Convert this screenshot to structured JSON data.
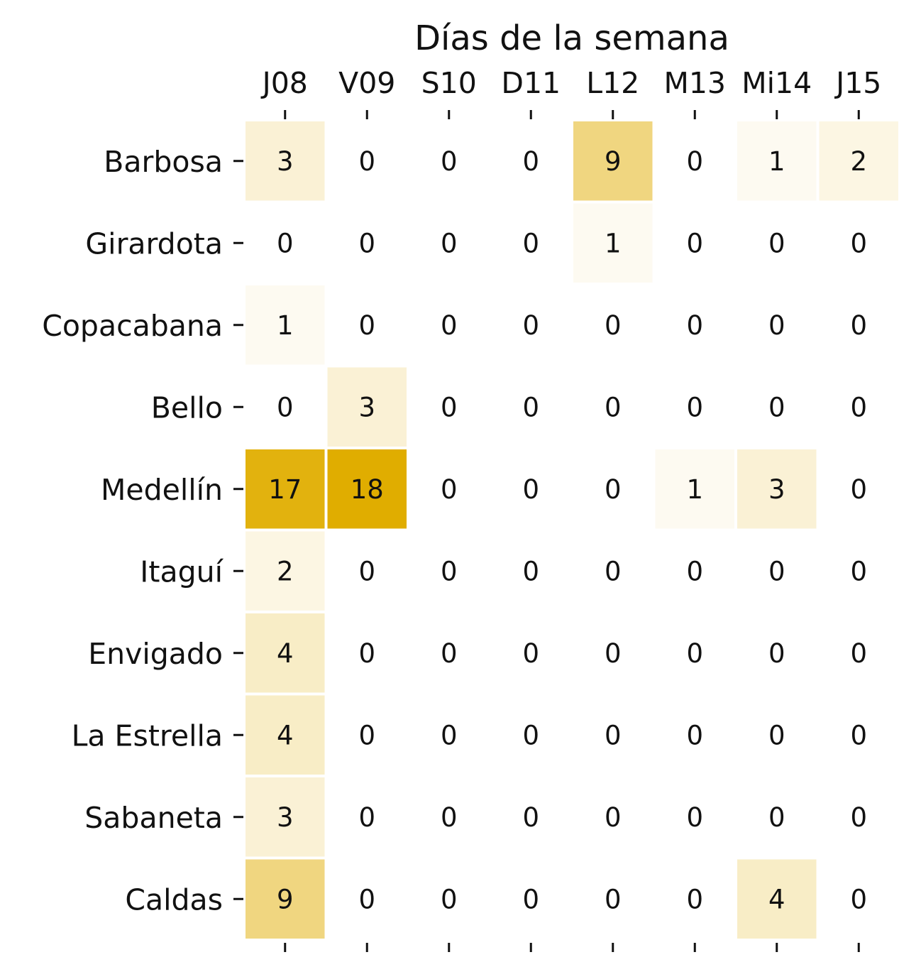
{
  "chart_data": {
    "type": "heatmap",
    "title": "",
    "xlabel": "Días de la semana",
    "ylabel": "",
    "x_axis_position": "top",
    "x_categories": [
      "J08",
      "V09",
      "S10",
      "D11",
      "L12",
      "M13",
      "Mi14",
      "J15"
    ],
    "y_categories": [
      "Barbosa",
      "Girardota",
      "Copacabana",
      "Bello",
      "Medellín",
      "Itaguí",
      "Envigado",
      "La Estrella",
      "Sabaneta",
      "Caldas"
    ],
    "values": [
      [
        3,
        0,
        0,
        0,
        9,
        0,
        1,
        2
      ],
      [
        0,
        0,
        0,
        0,
        1,
        0,
        0,
        0
      ],
      [
        1,
        0,
        0,
        0,
        0,
        0,
        0,
        0
      ],
      [
        0,
        3,
        0,
        0,
        0,
        0,
        0,
        0
      ],
      [
        17,
        18,
        0,
        0,
        0,
        1,
        3,
        0
      ],
      [
        2,
        0,
        0,
        0,
        0,
        0,
        0,
        0
      ],
      [
        4,
        0,
        0,
        0,
        0,
        0,
        0,
        0
      ],
      [
        4,
        0,
        0,
        0,
        0,
        0,
        0,
        0
      ],
      [
        3,
        0,
        0,
        0,
        0,
        0,
        0,
        0
      ],
      [
        9,
        0,
        0,
        0,
        0,
        0,
        4,
        0
      ]
    ],
    "colors": {
      "low": "#ffffff",
      "high": "#e0ad00",
      "text": "#111111"
    },
    "color_range": [
      0,
      18
    ],
    "colorbar": false,
    "cell_annotations": true,
    "grid": false
  }
}
